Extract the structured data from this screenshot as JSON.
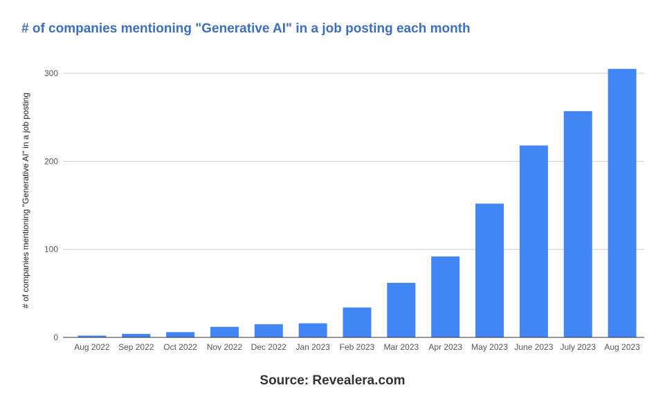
{
  "chart_data": {
    "type": "bar",
    "title": "# of companies mentioning \"Generative AI\" in a job posting each month",
    "xlabel": "",
    "ylabel": "# of companies mentioning \"Generative AI\" in a job posting",
    "categories": [
      "Aug 2022",
      "Sep 2022",
      "Oct 2022",
      "Nov 2022",
      "Dec 2022",
      "Jan 2023",
      "Feb 2023",
      "Mar 2023",
      "Apr 2023",
      "May 2023",
      "June 2023",
      "July 2023",
      "Aug 2023"
    ],
    "values": [
      2,
      4,
      6,
      12,
      15,
      16,
      34,
      62,
      92,
      152,
      218,
      257,
      305
    ],
    "ylim": [
      0,
      300
    ],
    "yticks": [
      "0",
      "100",
      "200",
      "300"
    ],
    "grid": true,
    "bar_color": "#4285f4",
    "annotation": "Source: Revealera.com"
  }
}
